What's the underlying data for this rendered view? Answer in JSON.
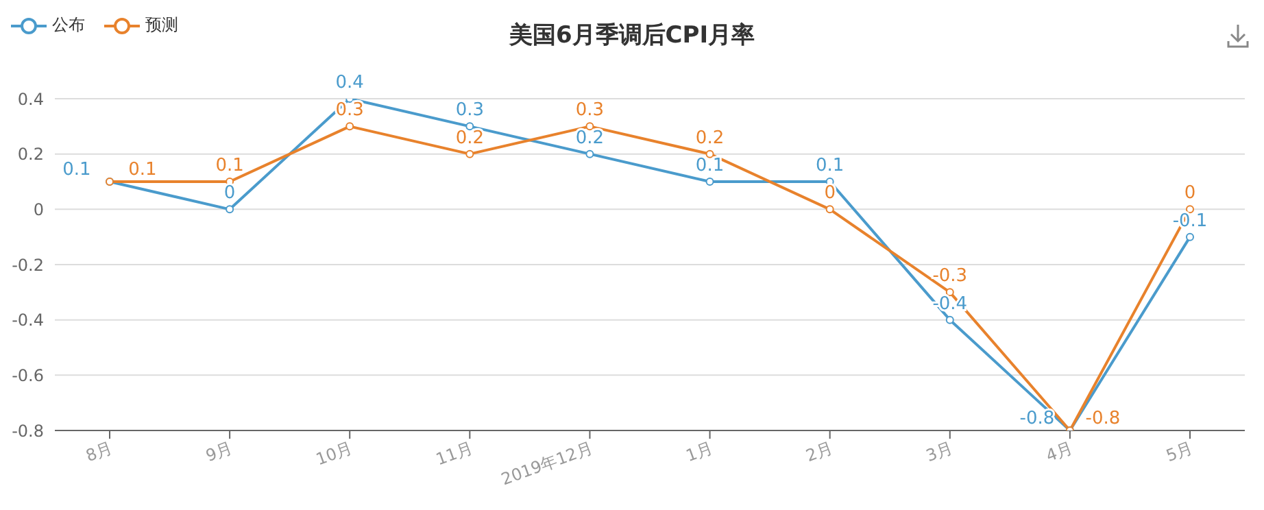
{
  "chart_data": {
    "type": "line",
    "title": "美国6月季调后CPI月率",
    "categories": [
      "8月",
      "9月",
      "10月",
      "11月",
      "2019年12月",
      "1月",
      "2月",
      "3月",
      "4月",
      "5月"
    ],
    "series": [
      {
        "name": "公布",
        "color": "#4a9bcc",
        "values": [
          0.1,
          0,
          0.4,
          0.3,
          0.2,
          0.1,
          0.1,
          -0.4,
          -0.8,
          -0.1
        ]
      },
      {
        "name": "预测",
        "color": "#e8822c",
        "values": [
          0.1,
          0.1,
          0.3,
          0.2,
          0.3,
          0.2,
          0,
          -0.3,
          -0.8,
          0
        ]
      }
    ],
    "ylim": [
      -0.8,
      0.4
    ],
    "yticks": [
      -0.8,
      -0.6,
      -0.4,
      -0.2,
      0,
      0.2,
      0.4
    ],
    "grid": "y",
    "legend": "top left",
    "marker": "circle",
    "line_style": "solid",
    "data_labels": true
  }
}
